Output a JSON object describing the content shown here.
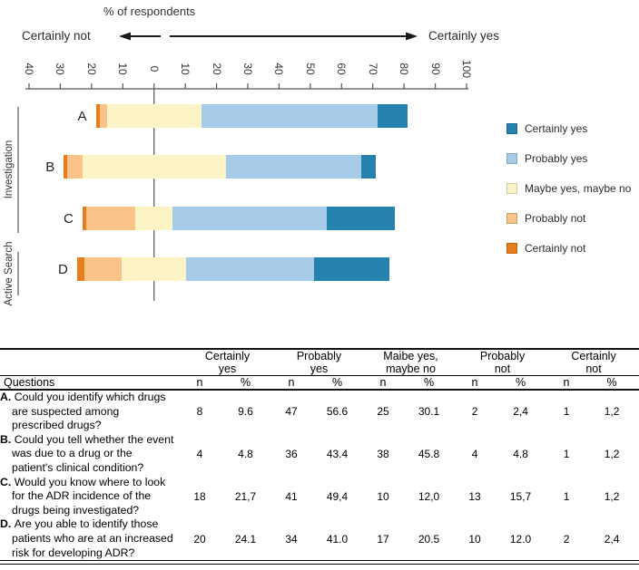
{
  "chart_data": {
    "type": "bar",
    "variant": "horizontal-diverging-stacked",
    "title": "% of respondents",
    "left_pole_label": "Certainly not",
    "right_pole_label": "Certainly yes",
    "categories": [
      "A",
      "B",
      "C",
      "D"
    ],
    "category_groups": [
      {
        "label": "Investigation",
        "categories": [
          "A",
          "B",
          "C"
        ]
      },
      {
        "label": "Active Search",
        "categories": [
          "D"
        ]
      }
    ],
    "series": [
      {
        "name": "Certainly not",
        "color": "#e87d1d",
        "values": [
          1.2,
          1.2,
          1.2,
          2.4
        ]
      },
      {
        "name": "Probably not",
        "color": "#fac489",
        "values": [
          2.4,
          4.8,
          15.7,
          12.0
        ]
      },
      {
        "name": "Maybe yes, maybe no",
        "color": "#fcf4c5",
        "values": [
          30.1,
          45.8,
          12.0,
          20.5
        ]
      },
      {
        "name": "Probably yes",
        "color": "#a5cbe9",
        "values": [
          56.6,
          43.4,
          49.4,
          41.0
        ]
      },
      {
        "name": "Certainly yes",
        "color": "#2581ae",
        "values": [
          9.6,
          4.8,
          21.7,
          24.1
        ]
      }
    ],
    "stacking_note": "Values are % of respondents; the 'Maybe yes, maybe no' segment is centered on zero, negative side = Certainly not + Probably not + half of Maybe",
    "axis": {
      "tick_labels": [
        "40",
        "30",
        "20",
        "10",
        "0",
        "10",
        "20",
        "30",
        "40",
        "50",
        "60",
        "70",
        "80",
        "90",
        "100"
      ],
      "tick_values": [
        -40,
        -30,
        -20,
        -10,
        0,
        10,
        20,
        30,
        40,
        50,
        60,
        70,
        80,
        90,
        100
      ],
      "range": [
        -40,
        100
      ],
      "grid": false
    },
    "legend_order": [
      "Certainly yes",
      "Probably yes",
      "Maybe yes, maybe no",
      "Probably not",
      "Certainly not"
    ],
    "legend_position": "right"
  },
  "table": {
    "questions_header": "Questions",
    "col_groups": [
      {
        "line1": "Certainly",
        "line2": "yes"
      },
      {
        "line1": "Probably",
        "line2": "yes"
      },
      {
        "line1": "Maibe yes,",
        "line2": "maybe no"
      },
      {
        "line1": "Probably",
        "line2": "not"
      },
      {
        "line1": "Certainly",
        "line2": "not"
      }
    ],
    "sub_headers": [
      "n",
      "%"
    ],
    "rows": [
      {
        "letter": "A.",
        "question_lines": [
          "Could you identify which drugs",
          "are suspected among",
          "prescribed drugs?"
        ],
        "values": [
          "8",
          "9.6",
          "47",
          "56.6",
          "25",
          "30.1",
          "2",
          "2,4",
          "1",
          "1,2"
        ]
      },
      {
        "letter": "B.",
        "question_lines": [
          "Could you tell whether the event",
          "was due to a drug or the",
          "patient's clinical condition?"
        ],
        "values": [
          "4",
          "4.8",
          "36",
          "43.4",
          "38",
          "45.8",
          "4",
          "4.8",
          "1",
          "1,2"
        ]
      },
      {
        "letter": "C.",
        "question_lines": [
          "Would you know where to look",
          "for the ADR incidence of the",
          "drugs being investigated?"
        ],
        "values": [
          "18",
          "21,7",
          "41",
          "49,4",
          "10",
          "12,0",
          "13",
          "15,7",
          "1",
          "1,2"
        ]
      },
      {
        "letter": "D.",
        "question_lines": [
          "Are you able to identify those",
          "patients who are at an increased",
          "risk for developing ADR?"
        ],
        "values": [
          "20",
          "24.1",
          "34",
          "41.0",
          "17",
          "20.5",
          "10",
          "12.0",
          "2",
          "2,4"
        ]
      }
    ]
  }
}
